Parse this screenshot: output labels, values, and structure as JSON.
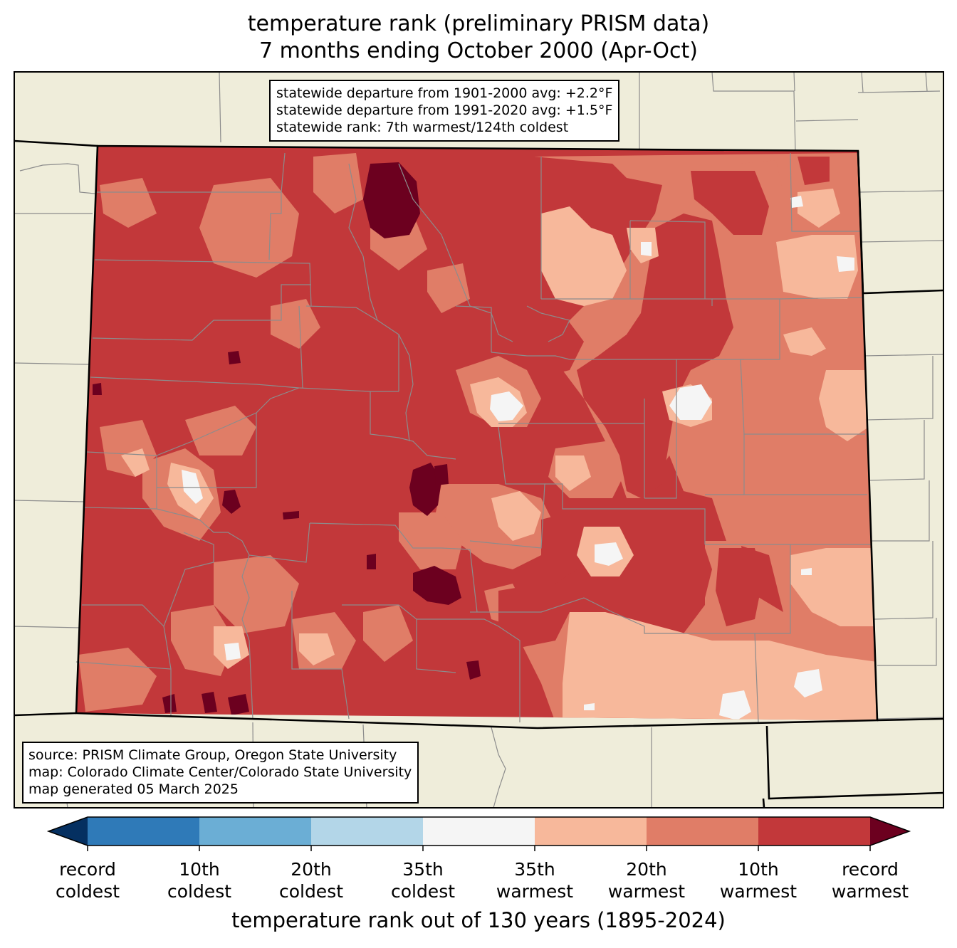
{
  "title": {
    "line1": "temperature rank (preliminary PRISM data)",
    "line2": "7 months ending October 2000 (Apr-Oct)"
  },
  "stats_box": {
    "line1": "statewide departure from 1901-2000 avg: +2.2°F",
    "line2": "statewide departure from 1991-2020 avg: +1.5°F",
    "line3": "statewide rank: 7th warmest/124th coldest"
  },
  "source_box": {
    "line1": "source: PRISM Climate Group, Oregon State University",
    "line2": "map: Colorado Climate Center/Colorado State University",
    "line3": "map generated 05 March 2025"
  },
  "colors": {
    "land_background": "#efedda",
    "record_coldest": "#053061",
    "tenth_coldest": "#2f7ab8",
    "twentieth_coldest": "#6baed5",
    "thirtyfifth_coldest": "#b3d6e8",
    "near_normal": "#f5f5f5",
    "thirtyfifth_warmest": "#f7b89b",
    "twentieth_warmest": "#e07d67",
    "tenth_warmest": "#c2383a",
    "record_warmest": "#6c001f",
    "county_lines": "#8c8c8c",
    "state_lines": "#000000"
  },
  "colorbar": {
    "tick_labels": [
      {
        "line1": "record",
        "line2": "coldest"
      },
      {
        "line1": "10th",
        "line2": "coldest"
      },
      {
        "line1": "20th",
        "line2": "coldest"
      },
      {
        "line1": "35th",
        "line2": "coldest"
      },
      {
        "line1": "35th",
        "line2": "warmest"
      },
      {
        "line1": "20th",
        "line2": "warmest"
      },
      {
        "line1": "10th",
        "line2": "warmest"
      },
      {
        "line1": "record",
        "line2": "warmest"
      }
    ],
    "axis_label": "temperature rank out of 130 years (1895-2024)"
  }
}
